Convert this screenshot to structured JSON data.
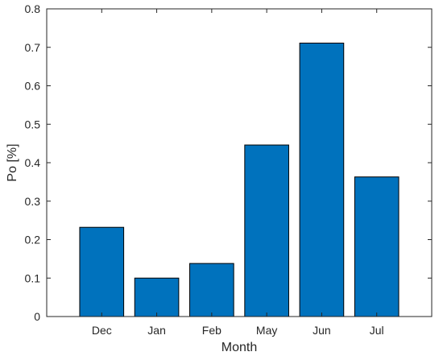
{
  "chart_data": {
    "type": "bar",
    "categories": [
      "Dec",
      "Jan",
      "Feb",
      "May",
      "Jun",
      "Jul"
    ],
    "values": [
      0.232,
      0.1,
      0.138,
      0.446,
      0.711,
      0.363
    ],
    "xlabel": "Month",
    "ylabel": "Po [%]",
    "ylim": [
      0,
      0.8
    ],
    "yticks": [
      0,
      0.1,
      0.2,
      0.3,
      0.4,
      0.5,
      0.6,
      0.7,
      0.8
    ],
    "ytick_labels": [
      "0",
      "0.1",
      "0.2",
      "0.3",
      "0.4",
      "0.5",
      "0.6",
      "0.7",
      "0.8"
    ],
    "grid": false,
    "bar_color": "#0072BD",
    "bar_edge_color": "#000000"
  }
}
